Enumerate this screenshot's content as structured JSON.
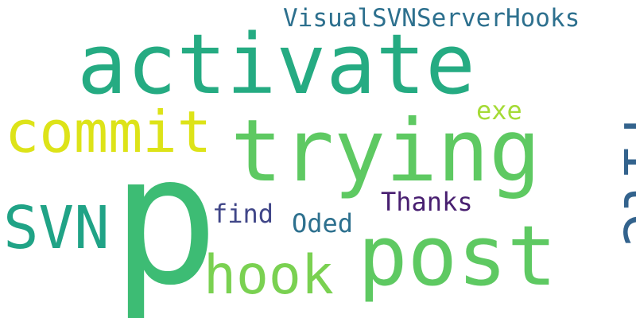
{
  "words": [
    {
      "id": "p",
      "text": "p",
      "color": "#3dbc74"
    },
    {
      "id": "activate",
      "text": "activate",
      "color": "#25ab82"
    },
    {
      "id": "trying",
      "text": "trying",
      "color": "#5ec962"
    },
    {
      "id": "post",
      "text": "post",
      "color": "#5ec962"
    },
    {
      "id": "commit",
      "text": "commit",
      "color": "#dde318"
    },
    {
      "id": "file",
      "text": "file",
      "color": "#33638d"
    },
    {
      "id": "svn",
      "text": "SVN",
      "color": "#20a386"
    },
    {
      "id": "hook",
      "text": "hook",
      "color": "#7ad151"
    },
    {
      "id": "visualsvn",
      "text": "VisualSVNServerHooks",
      "color": "#2d708e"
    },
    {
      "id": "exe",
      "text": "exe",
      "color": "#a5db36"
    },
    {
      "id": "thanks",
      "text": "Thanks",
      "color": "#481f70"
    },
    {
      "id": "find",
      "text": "find",
      "color": "#404688"
    },
    {
      "id": "oded",
      "text": "Oded",
      "color": "#2d708e"
    }
  ]
}
